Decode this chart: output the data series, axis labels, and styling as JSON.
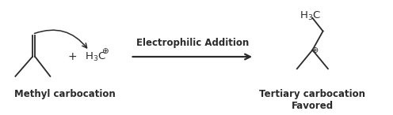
{
  "background_color": "#ffffff",
  "text_color": "#2a2a2a",
  "label_methyl": "Methyl carbocation",
  "label_tertiary": "Tertiary carbocation",
  "label_favored": "Favored",
  "label_reaction": "Electrophilic Addition",
  "font_size_labels": 8.5,
  "font_size_chem": 9.5,
  "lw": 1.3
}
